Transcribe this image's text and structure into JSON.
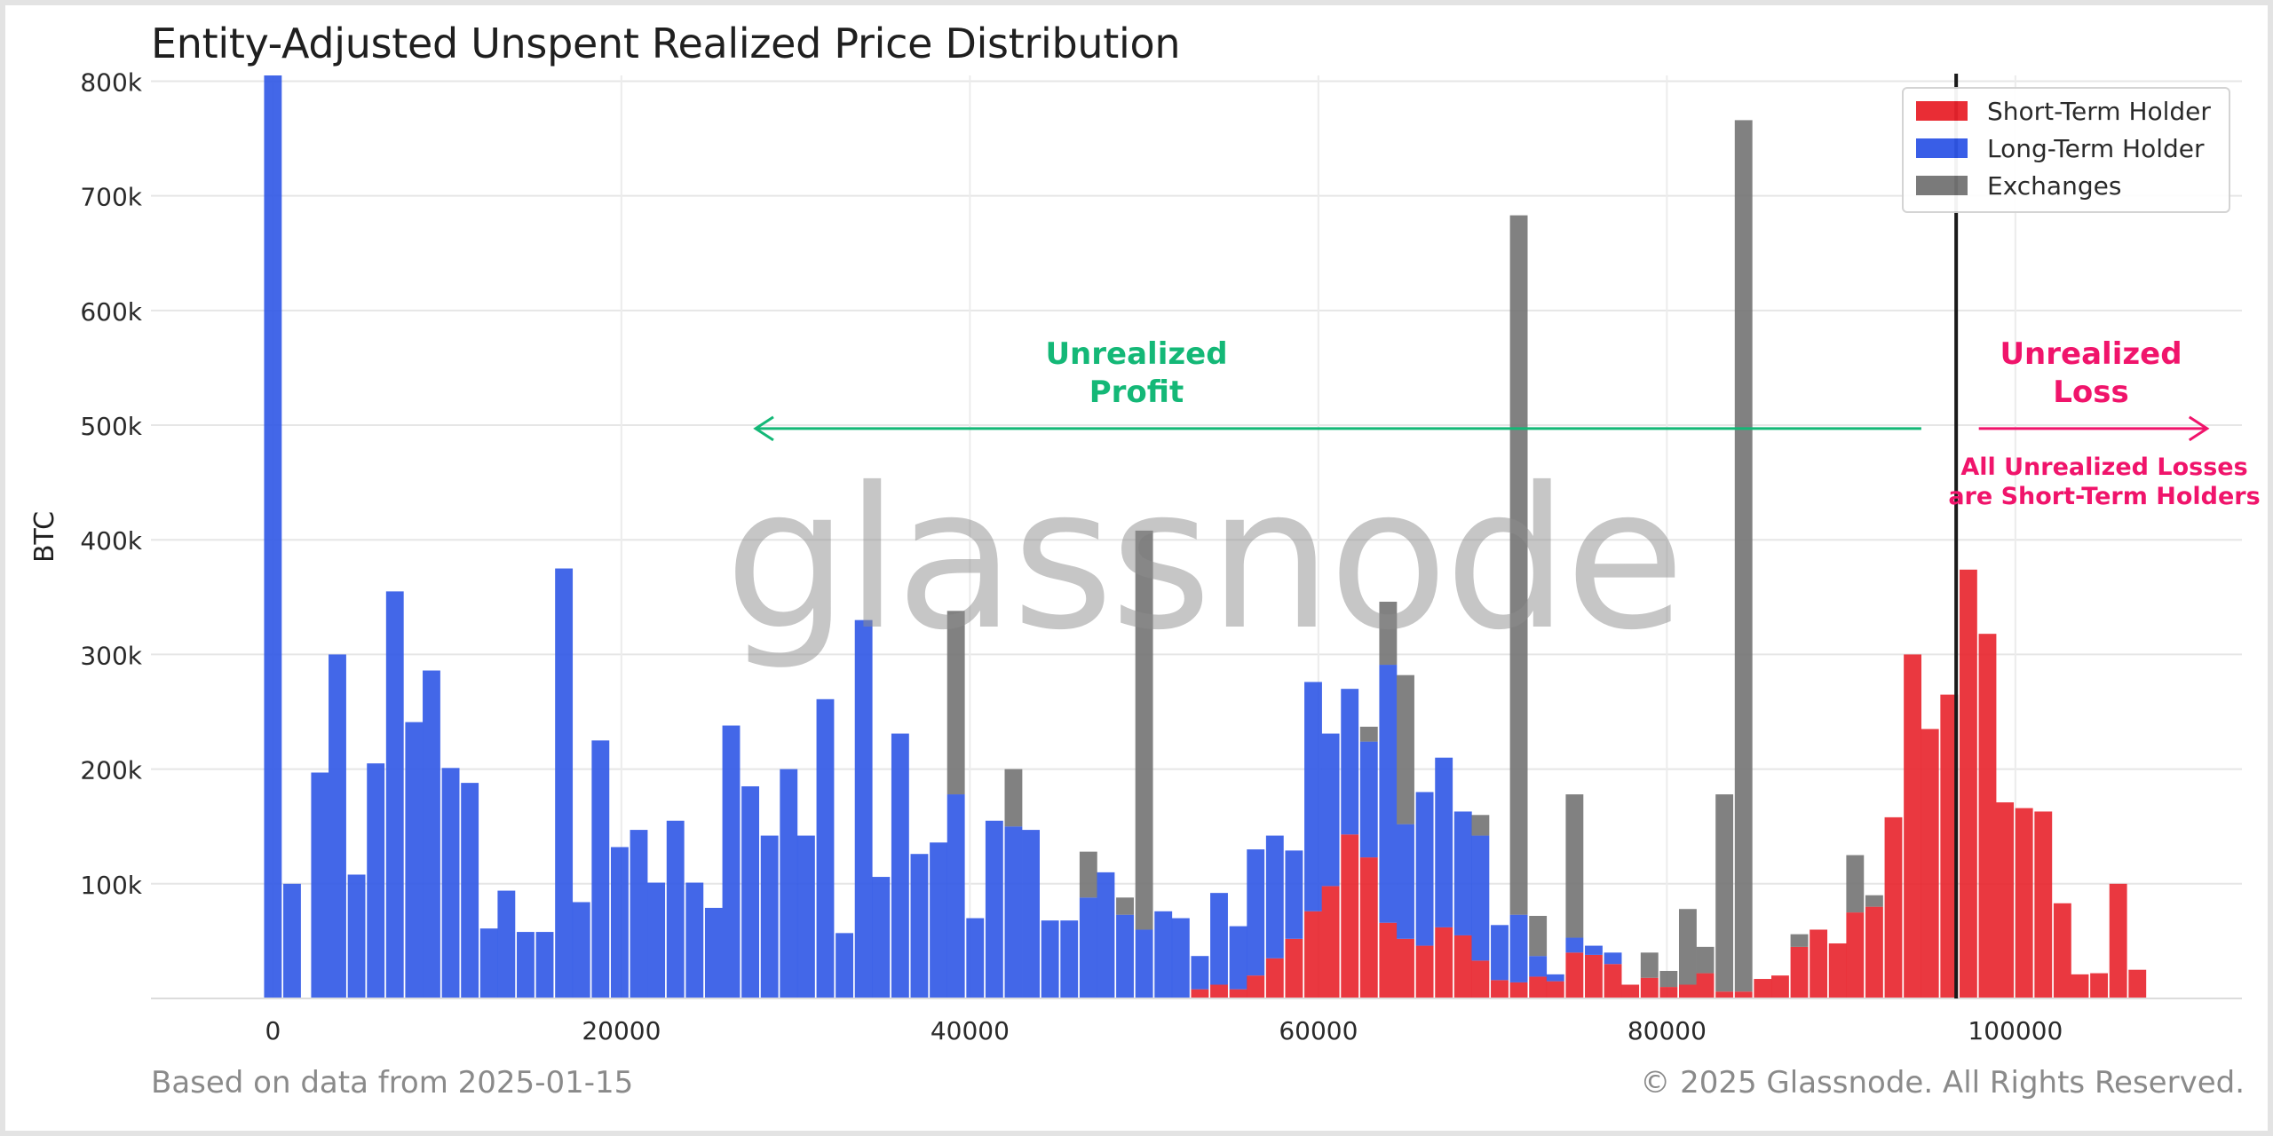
{
  "chart_data": {
    "type": "bar",
    "stacked": true,
    "title": "Entity-Adjusted Unspent Realized Price Distribution",
    "xlabel": "",
    "ylabel": "BTC",
    "xlim": [
      -7000,
      113000
    ],
    "ylim": [
      0,
      805000
    ],
    "x_ticks": [
      0,
      20000,
      40000,
      60000,
      80000,
      100000
    ],
    "x_tick_labels": [
      "0",
      "20000",
      "40000",
      "60000",
      "80000",
      "100000"
    ],
    "y_ticks": [
      100000,
      200000,
      300000,
      400000,
      500000,
      600000,
      700000,
      800000
    ],
    "y_tick_labels": [
      "100k",
      "200k",
      "300k",
      "400k",
      "500k",
      "600k",
      "700k",
      "800k"
    ],
    "grid": true,
    "legend_position": "top-right",
    "bin_width": 1100,
    "x": [
      0,
      1100,
      2700,
      3700,
      4800,
      5900,
      7000,
      8100,
      9100,
      10200,
      11300,
      12400,
      13400,
      14500,
      15600,
      16700,
      17700,
      18800,
      19900,
      21000,
      22000,
      23100,
      24200,
      25300,
      26300,
      27400,
      28500,
      29600,
      30600,
      31700,
      32800,
      33900,
      34900,
      36000,
      37100,
      38200,
      39200,
      40300,
      41400,
      42500,
      43500,
      44600,
      45700,
      46800,
      47800,
      48900,
      50000,
      51100,
      52100,
      53200,
      54300,
      55400,
      56400,
      57500,
      58600,
      59700,
      60700,
      61800,
      62900,
      64000,
      65000,
      66100,
      67200,
      68300,
      69300,
      70400,
      71500,
      72600,
      73600,
      74700,
      75800,
      76900,
      77900,
      79000,
      80100,
      81200,
      82200,
      83300,
      84400,
      85500,
      86500,
      87600,
      88700,
      89800,
      90800,
      91900,
      93000,
      94100,
      95100,
      96200,
      97300,
      98400,
      99400,
      100500,
      101600,
      102700,
      103700,
      104800,
      105900,
      107000
    ],
    "series": [
      {
        "name": "Short-Term Holder",
        "color": "#e8222b",
        "values": [
          0,
          0,
          0,
          0,
          0,
          0,
          0,
          0,
          0,
          0,
          0,
          0,
          0,
          0,
          0,
          0,
          0,
          0,
          0,
          0,
          0,
          0,
          0,
          0,
          0,
          0,
          0,
          0,
          0,
          0,
          0,
          0,
          0,
          0,
          0,
          0,
          0,
          0,
          0,
          0,
          0,
          0,
          0,
          0,
          0,
          0,
          0,
          0,
          0,
          8000,
          12000,
          8000,
          20000,
          35000,
          52000,
          76000,
          98000,
          143000,
          123000,
          66000,
          52000,
          46000,
          62000,
          55000,
          33000,
          16000,
          14000,
          19000,
          15000,
          40000,
          38000,
          30000,
          12000,
          18000,
          10000,
          12000,
          22000,
          6000,
          6000,
          17000,
          20000,
          45000,
          60000,
          48000,
          75000,
          80000,
          158000,
          300000,
          235000,
          265000,
          374000,
          318000,
          171000,
          166000,
          163000,
          83000,
          21000,
          22000,
          100000,
          25000
        ]
      },
      {
        "name": "Long-Term Holder",
        "color": "#2f56e6",
        "values": [
          805000,
          100000,
          197000,
          300000,
          108000,
          205000,
          355000,
          241000,
          286000,
          201000,
          188000,
          61000,
          94000,
          58000,
          58000,
          375000,
          84000,
          225000,
          132000,
          147000,
          101000,
          155000,
          101000,
          79000,
          238000,
          185000,
          142000,
          200000,
          142000,
          261000,
          57000,
          330000,
          106000,
          231000,
          126000,
          136000,
          178000,
          70000,
          155000,
          150000,
          147000,
          68000,
          68000,
          88000,
          110000,
          73000,
          60000,
          76000,
          70000,
          29000,
          80000,
          55000,
          110000,
          107000,
          77000,
          200000,
          133000,
          127000,
          101000,
          225000,
          100000,
          134000,
          148000,
          108000,
          109000,
          48000,
          59000,
          18000,
          6000,
          13000,
          8000,
          10000,
          0,
          0,
          0,
          0,
          0,
          0,
          0,
          0,
          0,
          0,
          0,
          0,
          0,
          0,
          0,
          0,
          0,
          0,
          0,
          0,
          0,
          0,
          0,
          0,
          0,
          0,
          0,
          0
        ]
      },
      {
        "name": "Exchanges",
        "color": "#737373",
        "values": [
          0,
          0,
          0,
          0,
          0,
          0,
          0,
          0,
          0,
          0,
          0,
          0,
          0,
          0,
          0,
          0,
          0,
          0,
          0,
          0,
          0,
          0,
          0,
          0,
          0,
          0,
          0,
          0,
          0,
          0,
          0,
          0,
          0,
          0,
          0,
          0,
          160000,
          0,
          0,
          50000,
          0,
          0,
          0,
          40000,
          0,
          15000,
          348000,
          0,
          0,
          0,
          0,
          0,
          0,
          0,
          0,
          0,
          0,
          0,
          13000,
          55000,
          130000,
          0,
          0,
          0,
          18000,
          0,
          610000,
          35000,
          0,
          125000,
          0,
          0,
          0,
          22000,
          14000,
          66000,
          23000,
          172000,
          760000,
          0,
          0,
          11000,
          0,
          0,
          50000,
          10000,
          0,
          0,
          0,
          0,
          0,
          0,
          0,
          0,
          0,
          0,
          0,
          0,
          0,
          0
        ]
      }
    ],
    "reference_line_x": 96600,
    "annotations": {
      "profit": [
        "Unrealized",
        "Profit"
      ],
      "loss": [
        "Unrealized",
        "Loss"
      ],
      "note": [
        "All Unrealized Losses",
        "are Short-Term Holders"
      ]
    },
    "arrows": [
      {
        "name": "profit-arrow",
        "from": 94600,
        "to": 27700,
        "y": 497000,
        "color": "#14b877"
      },
      {
        "name": "loss-arrow",
        "from": 97900,
        "to": 111000,
        "y": 497000,
        "color": "#f0146b"
      }
    ]
  },
  "watermark": "glassnode",
  "footer": {
    "left": "Based on data from 2025-01-15",
    "right": "© 2025 Glassnode. All Rights Reserved."
  }
}
